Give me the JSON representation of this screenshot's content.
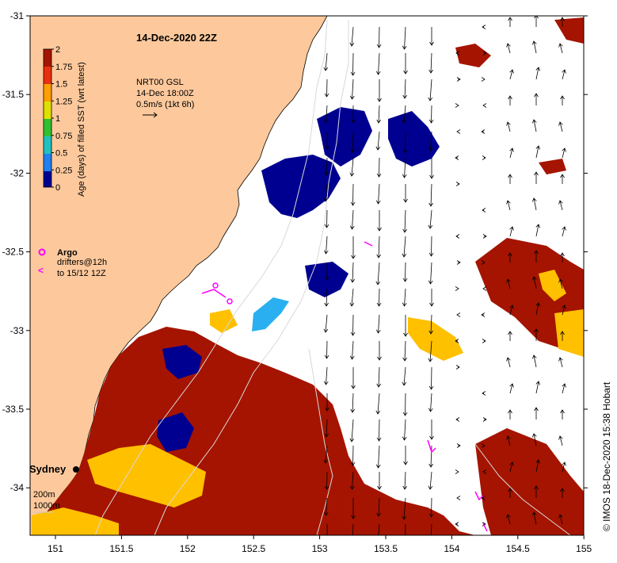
{
  "map": {
    "title": "14-Dec-2020 22Z",
    "vector_header": [
      "NRT00 GSL",
      "14-Dec 18:00Z",
      "0.5m/s (1kt 6h)"
    ],
    "colorbar": {
      "label": "Age (days) of filled SST (wrt latest)",
      "ticks": [
        "2",
        "1.75",
        "1.5",
        "1.25",
        "1",
        "0.75",
        "0.5",
        "0.25",
        "0"
      ]
    },
    "legend": {
      "argo_label": "Argo",
      "drifters_label": "drifters@12h",
      "drifters_sub": "to 15/12 12Z",
      "argo_color": "#ff00ff",
      "drifter_color": "#ff00ff"
    },
    "depth_labels": [
      "200m",
      "1000m"
    ],
    "city": "Sydney",
    "credit": "© IMOS 18-Dec-2020 15:38 Hobart",
    "x_ticks": [
      "151",
      "151.5",
      "152",
      "152.5",
      "153",
      "153.5",
      "154",
      "154.5",
      "155"
    ],
    "y_ticks": [
      "-31",
      "-31.5",
      "-32",
      "-32.5",
      "-33",
      "-33.5",
      "-34"
    ],
    "colors": {
      "land": "#fdc99c",
      "age_0": "#000090",
      "age_0_5": "#2ab0f0",
      "age_1_5": "#ffc000",
      "age_2": "#a51400",
      "sea": "#ffffff"
    }
  }
}
